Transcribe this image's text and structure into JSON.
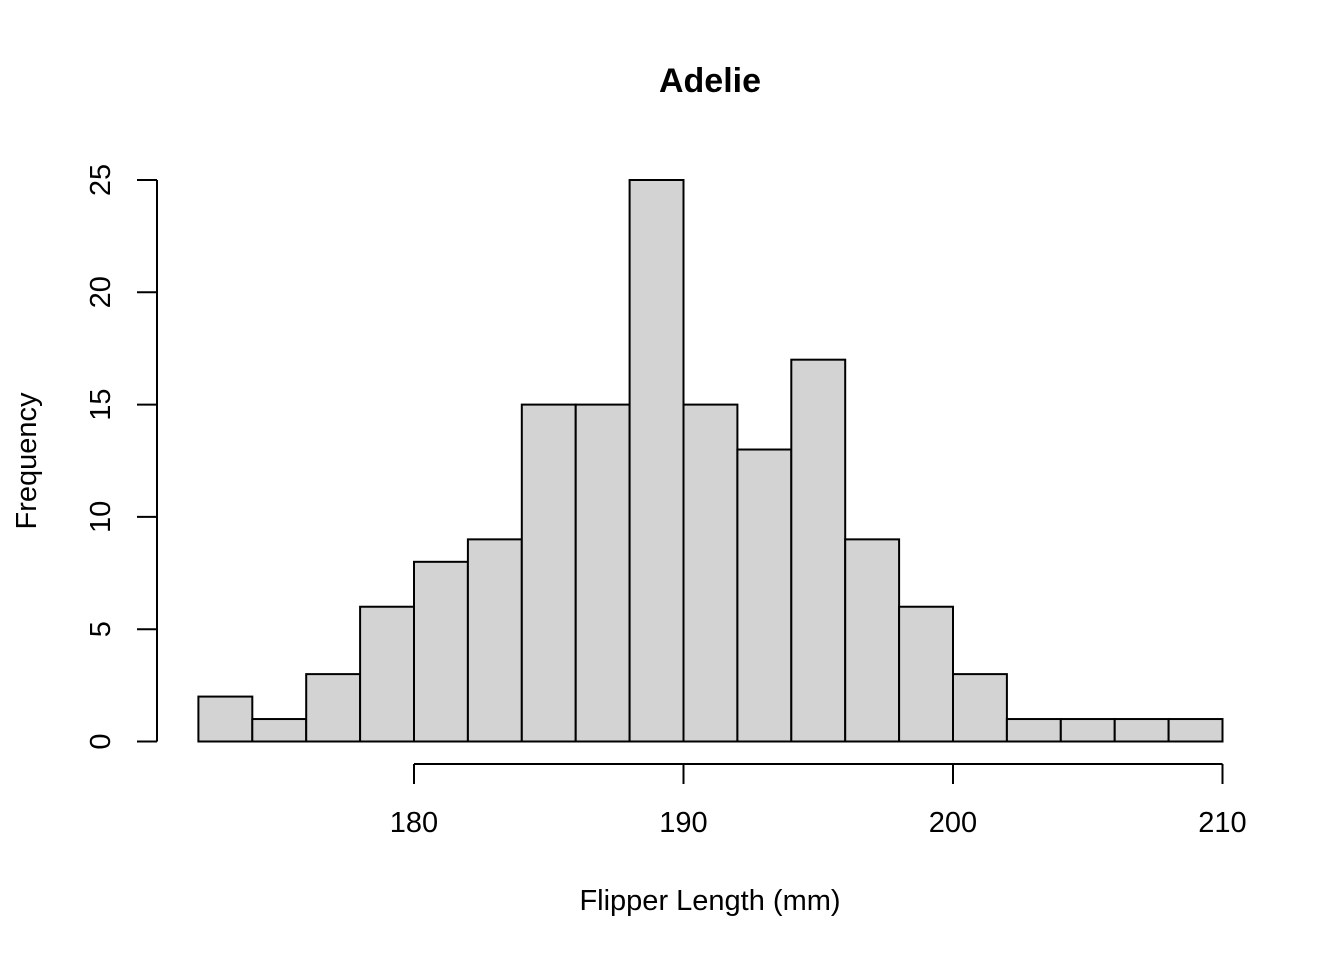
{
  "chart_data": {
    "type": "bar",
    "title": "Adelie",
    "xlabel": "Flipper Length (mm)",
    "ylabel": "Frequency",
    "bin_edges": [
      172,
      174,
      176,
      178,
      180,
      182,
      184,
      186,
      188,
      190,
      192,
      194,
      196,
      198,
      200,
      202,
      204,
      206,
      208,
      210
    ],
    "values": [
      2,
      1,
      3,
      6,
      8,
      9,
      15,
      15,
      25,
      15,
      13,
      17,
      9,
      6,
      3,
      1,
      1,
      1,
      1
    ],
    "xticks": [
      180,
      190,
      200,
      210
    ],
    "yticks": [
      0,
      5,
      10,
      15,
      20,
      25
    ],
    "xlim": [
      180,
      210
    ],
    "ylim": [
      0,
      25
    ],
    "bar_color": "#d3d3d3",
    "grid": false,
    "legend": "none"
  }
}
